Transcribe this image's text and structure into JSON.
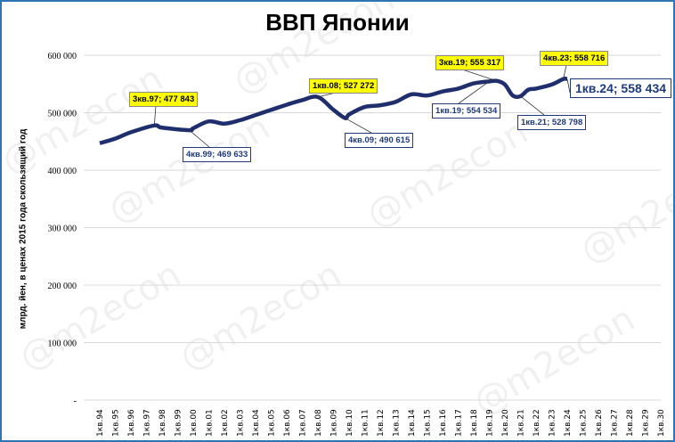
{
  "chart_data": {
    "type": "line",
    "title": "ВВП Японии",
    "ylabel": "млрд. йен, в ценах 2015 года скользящий год",
    "xlabel": "",
    "ylim": [
      0,
      600000
    ],
    "yticks": [
      "-",
      "100 000",
      "200 000",
      "300 000",
      "400 000",
      "500 000",
      "600 000"
    ],
    "xticks": [
      "1кв.94",
      "1кв.95",
      "1кв.96",
      "1кв.97",
      "1кв.98",
      "1кв.99",
      "1кв.00",
      "1кв.01",
      "1кв.02",
      "1кв.03",
      "1кв.04",
      "1кв.05",
      "1кв.06",
      "1кв.07",
      "1кв.08",
      "1кв.09",
      "1кв.10",
      "1кв.11",
      "1кв.12",
      "1кв.13",
      "1кв.14",
      "1кв.15",
      "1кв.16",
      "1кв.17",
      "1кв.18",
      "1кв.19",
      "1кв.20",
      "1кв.21",
      "1кв.22",
      "1кв.23",
      "1кв.24",
      "1кв.25",
      "1кв.26",
      "1кв.27",
      "1кв.28",
      "1кв.29",
      "1кв.30"
    ],
    "grid": true,
    "color": "#1f2f6e",
    "points": [
      [
        "1кв.94",
        447000
      ],
      [
        "1кв.95",
        455000
      ],
      [
        "1кв.96",
        466000
      ],
      [
        "3кв.97",
        477843
      ],
      [
        "1кв.98",
        474000
      ],
      [
        "4кв.99",
        469633
      ],
      [
        "1кв.00",
        473000
      ],
      [
        "1кв.01",
        485000
      ],
      [
        "1кв.02",
        481000
      ],
      [
        "1кв.03",
        487000
      ],
      [
        "1кв.04",
        496000
      ],
      [
        "1кв.05",
        505000
      ],
      [
        "1кв.06",
        514000
      ],
      [
        "1кв.07",
        522000
      ],
      [
        "1кв.08",
        527272
      ],
      [
        "1кв.09",
        505000
      ],
      [
        "4кв.09",
        490615
      ],
      [
        "1кв.10",
        497000
      ],
      [
        "1кв.11",
        510000
      ],
      [
        "1кв.12",
        513000
      ],
      [
        "1кв.13",
        519000
      ],
      [
        "1кв.14",
        532000
      ],
      [
        "1кв.15",
        530000
      ],
      [
        "1кв.16",
        537000
      ],
      [
        "1кв.17",
        542000
      ],
      [
        "1кв.18",
        551000
      ],
      [
        "1кв.19",
        554534
      ],
      [
        "3кв.19",
        555317
      ],
      [
        "1кв.20",
        549000
      ],
      [
        "3кв.20",
        530000
      ],
      [
        "1кв.21",
        528798
      ],
      [
        "3кв.21",
        540000
      ],
      [
        "1кв.22",
        542000
      ],
      [
        "1кв.23",
        549000
      ],
      [
        "4кв.23",
        558716
      ],
      [
        "1кв.24",
        558434
      ]
    ],
    "annotations": [
      {
        "text": "3кв.97; 477 843",
        "style": "hi"
      },
      {
        "text": "4кв.99; 469 633",
        "style": "lo"
      },
      {
        "text": "1кв.08; 527 272",
        "style": "hi"
      },
      {
        "text": "4кв.09; 490 615",
        "style": "lo"
      },
      {
        "text": "3кв.19; 555 317",
        "style": "hi"
      },
      {
        "text": "1кв.19; 554 534",
        "style": "lo"
      },
      {
        "text": "1кв.21; 528 798",
        "style": "lo"
      },
      {
        "text": "4кв.23; 558 716",
        "style": "hi"
      },
      {
        "text": "1кв.24; 558 434",
        "style": "lo"
      }
    ]
  },
  "watermark": "@m2econ"
}
